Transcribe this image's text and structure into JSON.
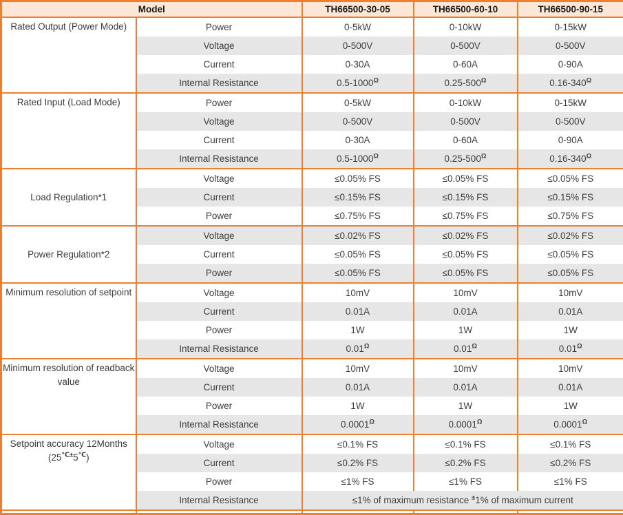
{
  "colors": {
    "border_orange": "#EE7E30",
    "header_bg": "#FCE6D6",
    "row_alt_bg": "#E6E6E7",
    "row_bg": "#FFFFFF",
    "header_text": "#1A1A1A",
    "body_text": "#3C3C3C"
  },
  "table": {
    "header": {
      "model_label": "Model",
      "models": [
        "TH66500-30-05",
        "TH66500-60-10",
        "TH66500-90-15"
      ]
    },
    "sections": [
      {
        "category": "Rated Output (Power Mode)",
        "valign": "top",
        "rows": [
          {
            "param": "Power",
            "values": [
              "0-5kW",
              "0-10kW",
              "0-15kW"
            ]
          },
          {
            "param": "Voltage",
            "values": [
              "0-500V",
              "0-500V",
              "0-500V"
            ]
          },
          {
            "param": "Current",
            "values": [
              "0-30A",
              "0-60A",
              "0-90A"
            ]
          },
          {
            "param": "Internal Resistance",
            "values": [
              [
                {
                  "t": "0.5-1000"
                },
                {
                  "t": "Ω",
                  "sup": true
                }
              ],
              [
                {
                  "t": "0.25-500"
                },
                {
                  "t": "Ω",
                  "sup": true
                }
              ],
              [
                {
                  "t": "0.16-340"
                },
                {
                  "t": "Ω",
                  "sup": true
                }
              ]
            ]
          }
        ]
      },
      {
        "category": "Rated Input (Load Mode)",
        "valign": "top",
        "rows": [
          {
            "param": "Power",
            "values": [
              "0-5kW",
              "0-10kW",
              "0-15kW"
            ]
          },
          {
            "param": "Voltage",
            "values": [
              "0-500V",
              "0-500V",
              "0-500V"
            ]
          },
          {
            "param": "Current",
            "values": [
              "0-30A",
              "0-60A",
              "0-90A"
            ]
          },
          {
            "param": "Internal Resistance",
            "values": [
              [
                {
                  "t": "0.5-1000"
                },
                {
                  "t": "Ω",
                  "sup": true
                }
              ],
              [
                {
                  "t": "0.25-500"
                },
                {
                  "t": "Ω",
                  "sup": true
                }
              ],
              [
                {
                  "t": "0.16-340"
                },
                {
                  "t": "Ω",
                  "sup": true
                }
              ]
            ]
          }
        ]
      },
      {
        "category": "Load Regulation*1",
        "valign": "middle",
        "rows": [
          {
            "param": "Voltage",
            "values": [
              "≤0.05% FS",
              "≤0.05% FS",
              "≤0.05% FS"
            ]
          },
          {
            "param": "Current",
            "values": [
              "≤0.15% FS",
              "≤0.15% FS",
              "≤0.15% FS"
            ]
          },
          {
            "param": "Power",
            "values": [
              "≤0.75% FS",
              "≤0.75% FS",
              "≤0.75% FS"
            ]
          }
        ]
      },
      {
        "category": "Power Regulation*2",
        "valign": "middle",
        "rows": [
          {
            "param": "Voltage",
            "values": [
              "≤0.02% FS",
              "≤0.02% FS",
              "≤0.02% FS"
            ]
          },
          {
            "param": "Current",
            "values": [
              "≤0.05% FS",
              "≤0.05% FS",
              "≤0.05% FS"
            ]
          },
          {
            "param": "Power",
            "values": [
              "≤0.05% FS",
              "≤0.05% FS",
              "≤0.05% FS"
            ]
          }
        ]
      },
      {
        "category": "Minimum resolution of setpoint",
        "valign": "top",
        "rows": [
          {
            "param": "Voltage",
            "values": [
              "10mV",
              "10mV",
              "10mV"
            ]
          },
          {
            "param": "Current",
            "values": [
              "0.01A",
              "0.01A",
              "0.01A"
            ]
          },
          {
            "param": "Power",
            "values": [
              "1W",
              "1W",
              "1W"
            ]
          },
          {
            "param": "Internal Resistance",
            "values": [
              [
                {
                  "t": "0.01"
                },
                {
                  "t": "Ω",
                  "sup": true
                }
              ],
              [
                {
                  "t": "0.01"
                },
                {
                  "t": "Ω",
                  "sup": true
                }
              ],
              [
                {
                  "t": "0.01"
                },
                {
                  "t": "Ω",
                  "sup": true
                }
              ]
            ]
          }
        ]
      },
      {
        "category": "Minimum resolution of readback value",
        "valign": "top",
        "rows": [
          {
            "param": "Voltage",
            "values": [
              "10mV",
              "10mV",
              "10mV"
            ]
          },
          {
            "param": "Current",
            "values": [
              "0.01A",
              "0.01A",
              "0.01A"
            ]
          },
          {
            "param": "Power",
            "values": [
              "1W",
              "1W",
              "1W"
            ]
          },
          {
            "param": "Internal Resistance",
            "values": [
              [
                {
                  "t": "0.0001"
                },
                {
                  "t": "Ω",
                  "sup": true
                }
              ],
              [
                {
                  "t": "0.0001"
                },
                {
                  "t": "Ω",
                  "sup": true
                }
              ],
              [
                {
                  "t": "0.0001"
                },
                {
                  "t": "Ω",
                  "sup": true
                }
              ]
            ]
          }
        ]
      },
      {
        "category": [
          {
            "t": "Setpoint accuracy 12Months"
          },
          {
            "br": true
          },
          {
            "t": "(25"
          },
          {
            "t": "℃±",
            "sup": true
          },
          {
            "t": "5"
          },
          {
            "t": "℃",
            "sup": true
          },
          {
            "t": ")"
          }
        ],
        "valign": "top",
        "rows": [
          {
            "param": "Voltage",
            "values": [
              "≤0.1% FS",
              "≤0.1% FS",
              "≤0.1% FS"
            ]
          },
          {
            "param": "Current",
            "values": [
              "≤0.2% FS",
              "≤0.2% FS",
              "≤0.2% FS"
            ]
          },
          {
            "param": "Power",
            "values": [
              "≤1% FS",
              "≤1% FS",
              "≤1% FS"
            ]
          },
          {
            "param": "Internal Resistance",
            "merged": true,
            "merged_value": [
              {
                "t": "≤1% of maximum resistance "
              },
              {
                "t": "±",
                "sup": true
              },
              {
                "t": "1% of maximum current"
              }
            ]
          }
        ]
      }
    ]
  }
}
